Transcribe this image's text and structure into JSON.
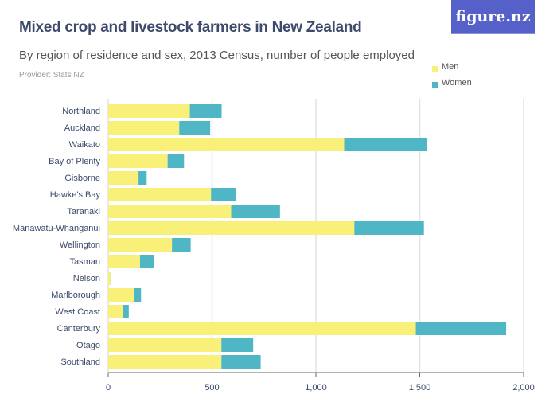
{
  "header": {
    "title": "Mixed crop and livestock farmers in New Zealand",
    "subtitle": "By region of residence and sex, 2013 Census, number of people employed",
    "provider": "Provider: Stats NZ",
    "logo_text": "figure.nz"
  },
  "colors": {
    "men": "#f9f07a",
    "women": "#4fb6c6",
    "logo": "#5560c8"
  },
  "chart_data": {
    "type": "bar",
    "orientation": "horizontal",
    "stacked": true,
    "categories": [
      "Northland",
      "Auckland",
      "Waikato",
      "Bay of Plenty",
      "Gisborne",
      "Hawke's Bay",
      "Taranaki",
      "Manawatu-Whanganui",
      "Wellington",
      "Tasman",
      "Nelson",
      "Marlborough",
      "West Coast",
      "Canterbury",
      "Otago",
      "Southland"
    ],
    "series": [
      {
        "name": "Men",
        "values": [
          393,
          342,
          1136,
          286,
          146,
          495,
          592,
          1185,
          307,
          153,
          11,
          124,
          69,
          1481,
          545,
          545
        ]
      },
      {
        "name": "Women",
        "values": [
          153,
          149,
          400,
          79,
          39,
          120,
          235,
          335,
          90,
          66,
          4,
          34,
          30,
          435,
          153,
          189
        ]
      }
    ],
    "xlim": [
      0,
      2000
    ],
    "ticks": [
      "0",
      "500",
      "1,000",
      "1,500",
      "2,000"
    ],
    "tick_values": [
      0,
      500,
      1000,
      1500,
      2000
    ],
    "grid": true,
    "legend_position": "top-right"
  }
}
